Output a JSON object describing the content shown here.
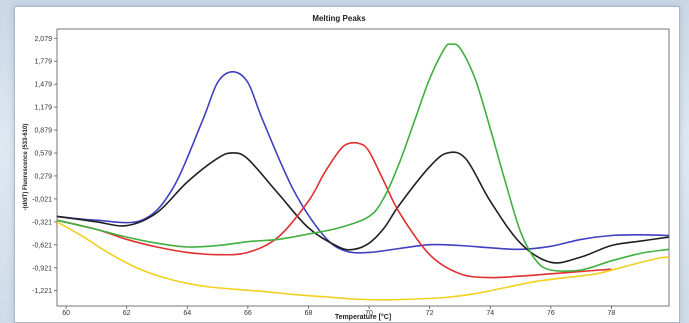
{
  "chart_data": {
    "type": "line",
    "title": "Melting Peaks",
    "xlabel": "Temperature [°C]",
    "ylabel": "-(d/dT) Fluorescence (533-610)",
    "xlim": [
      59.7,
      79.9
    ],
    "ylim": [
      -1.421,
      2.2
    ],
    "xticks": [
      "60",
      "62",
      "64",
      "66",
      "68",
      "70",
      "72",
      "74",
      "76",
      "78"
    ],
    "yticks": [
      "2,079",
      "1,779",
      "1,479",
      "1,179",
      "0,879",
      "0,579",
      "0,279",
      "-0,021",
      "-0,321",
      "-0,621",
      "-0,921",
      "-1,221"
    ],
    "grid": false,
    "series": [
      {
        "color": "#4040c0",
        "x": [
          59.7,
          61.0,
          62.5,
          63.5,
          64.5,
          65.0,
          65.5,
          66.0,
          66.5,
          67.5,
          68.5,
          69.2,
          70.0,
          71.0,
          72.0,
          73.0,
          74.0,
          75.0,
          76.0,
          77.0,
          78.0,
          79.0,
          79.9
        ],
        "y": [
          -0.25,
          -0.3,
          -0.3,
          0.1,
          1.0,
          1.5,
          1.64,
          1.5,
          1.0,
          0.1,
          -0.5,
          -0.7,
          -0.72,
          -0.67,
          -0.62,
          -0.63,
          -0.66,
          -0.68,
          -0.64,
          -0.55,
          -0.5,
          -0.49,
          -0.5
        ]
      },
      {
        "color": "#202020",
        "x": [
          59.7,
          61.0,
          62.0,
          63.0,
          64.0,
          65.0,
          65.5,
          66.0,
          67.0,
          68.0,
          69.0,
          69.5,
          70.0,
          70.5,
          71.0,
          72.0,
          72.6,
          73.2,
          74.0,
          75.0,
          76.0,
          77.0,
          78.0,
          79.0,
          79.9
        ],
        "y": [
          -0.25,
          -0.32,
          -0.37,
          -0.2,
          0.2,
          0.51,
          0.58,
          0.5,
          0.05,
          -0.4,
          -0.65,
          -0.68,
          -0.6,
          -0.4,
          -0.1,
          0.4,
          0.58,
          0.5,
          -0.05,
          -0.6,
          -0.85,
          -0.78,
          -0.63,
          -0.57,
          -0.52
        ]
      },
      {
        "color": "#e03030",
        "x": [
          59.7,
          61.0,
          62.0,
          63.0,
          64.0,
          65.0,
          66.0,
          67.0,
          68.0,
          68.5,
          69.0,
          69.3,
          69.7,
          70.0,
          70.5,
          71.0,
          72.0,
          73.0,
          74.0,
          75.0,
          76.0,
          77.0,
          78.0
        ],
        "y": [
          -0.3,
          -0.42,
          -0.55,
          -0.65,
          -0.72,
          -0.75,
          -0.72,
          -0.52,
          -0.05,
          0.3,
          0.6,
          0.7,
          0.7,
          0.6,
          0.2,
          -0.2,
          -0.75,
          -1.0,
          -1.05,
          -1.03,
          -1.0,
          -0.97,
          -0.94
        ]
      },
      {
        "color": "#40b040",
        "x": [
          59.7,
          61.0,
          62.0,
          63.0,
          64.0,
          65.0,
          66.0,
          67.0,
          68.0,
          69.0,
          70.0,
          70.5,
          71.0,
          71.5,
          72.0,
          72.5,
          72.7,
          73.0,
          73.5,
          74.0,
          74.5,
          75.0,
          75.5,
          76.0,
          77.0,
          78.0,
          79.0,
          79.9
        ],
        "y": [
          -0.3,
          -0.42,
          -0.52,
          -0.6,
          -0.65,
          -0.63,
          -0.58,
          -0.55,
          -0.48,
          -0.4,
          -0.25,
          0.0,
          0.45,
          1.0,
          1.55,
          1.95,
          2.0,
          1.95,
          1.55,
          0.9,
          0.2,
          -0.45,
          -0.82,
          -0.95,
          -0.95,
          -0.83,
          -0.73,
          -0.68
        ]
      },
      {
        "color": "#f0d020",
        "x": [
          59.7,
          60.5,
          61.5,
          62.5,
          63.5,
          64.5,
          65.5,
          66.5,
          67.5,
          68.5,
          69.5,
          70.5,
          71.5,
          72.5,
          73.5,
          74.5,
          75.5,
          76.5,
          77.5,
          78.5,
          79.5,
          79.9
        ],
        "y": [
          -0.32,
          -0.5,
          -0.75,
          -0.95,
          -1.08,
          -1.16,
          -1.2,
          -1.23,
          -1.27,
          -1.3,
          -1.33,
          -1.34,
          -1.33,
          -1.31,
          -1.26,
          -1.18,
          -1.1,
          -1.05,
          -1.0,
          -0.9,
          -0.8,
          -0.78
        ]
      }
    ]
  }
}
